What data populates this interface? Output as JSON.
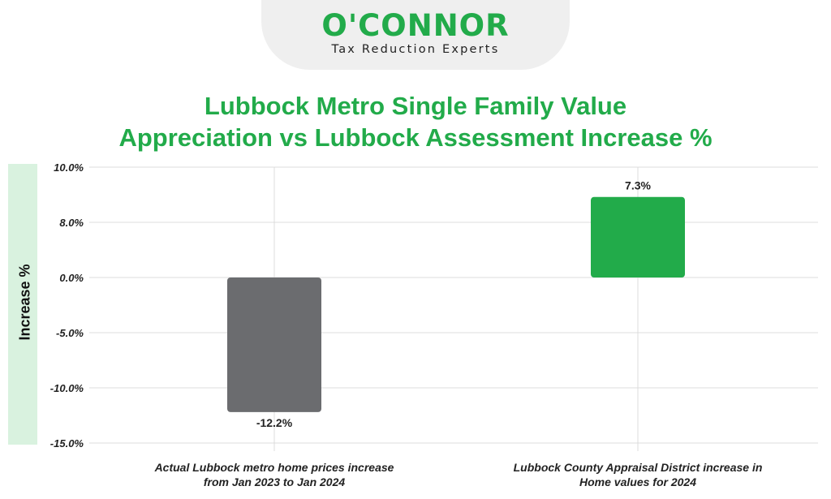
{
  "logo": {
    "name": "O'CONNOR",
    "tagline": "Tax Reduction Experts"
  },
  "colors": {
    "accent": "#22ab4a",
    "bar_gray": "#6b6c6f",
    "bar_green": "#22ab4a",
    "axis_band": "#d9f2df"
  },
  "chart_data": {
    "type": "bar",
    "title_lines": [
      "Lubbock Metro Single Family Value",
      "Appreciation vs Lubbock Assessment Increase %"
    ],
    "ylabel": "Increase %",
    "xlabel": "",
    "y_tick_labels": [
      "10.0%",
      "8.0%",
      "0.0%",
      "-5.0%",
      "-10.0%",
      "-15.0%"
    ],
    "categories": [
      [
        "Actual Lubbock metro home prices increase",
        "from Jan 2023 to Jan 2024"
      ],
      [
        "Lubbock County Appraisal District increase in",
        "Home values for 2024"
      ]
    ],
    "values": [
      -12.2,
      7.3
    ],
    "data_labels": [
      "-12.2%",
      "7.3%"
    ],
    "bar_colors": [
      "#6b6c6f",
      "#22ab4a"
    ],
    "grid": true,
    "legend": "none"
  }
}
